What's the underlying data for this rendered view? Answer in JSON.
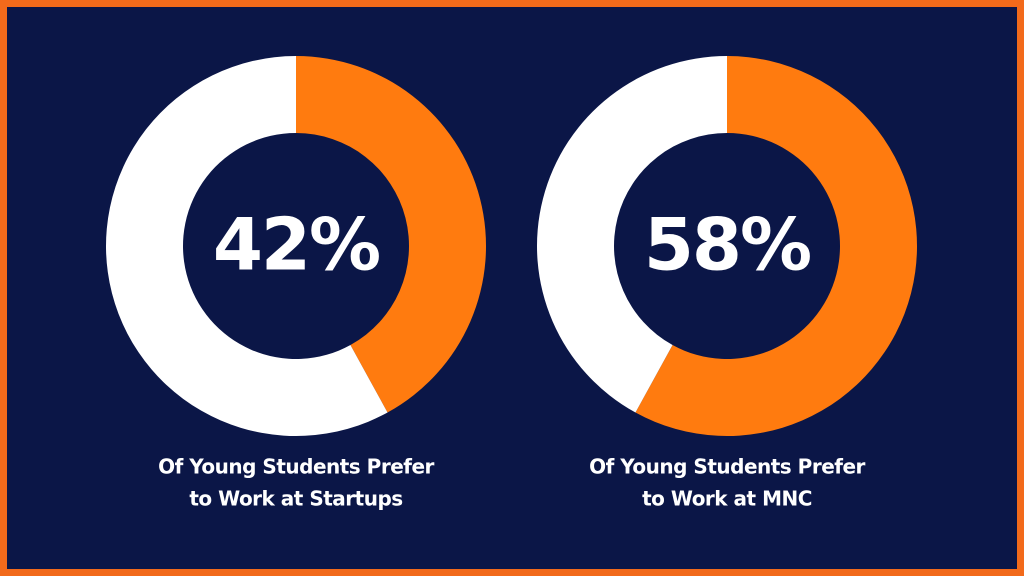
{
  "chart_data": [
    {
      "type": "donut",
      "values": [
        42,
        58
      ],
      "value_labels": [
        "42%",
        null
      ],
      "colors": [
        "#ff7b0f",
        "#ffffff"
      ],
      "caption": [
        "Of Young Students Prefer",
        "to Work at Startups"
      ]
    },
    {
      "type": "donut",
      "values": [
        58,
        42
      ],
      "value_labels": [
        "58%",
        null
      ],
      "colors": [
        "#ff7b0f",
        "#ffffff"
      ],
      "caption": [
        "Of Young Students Prefer",
        "to Work at MNC"
      ]
    }
  ]
}
